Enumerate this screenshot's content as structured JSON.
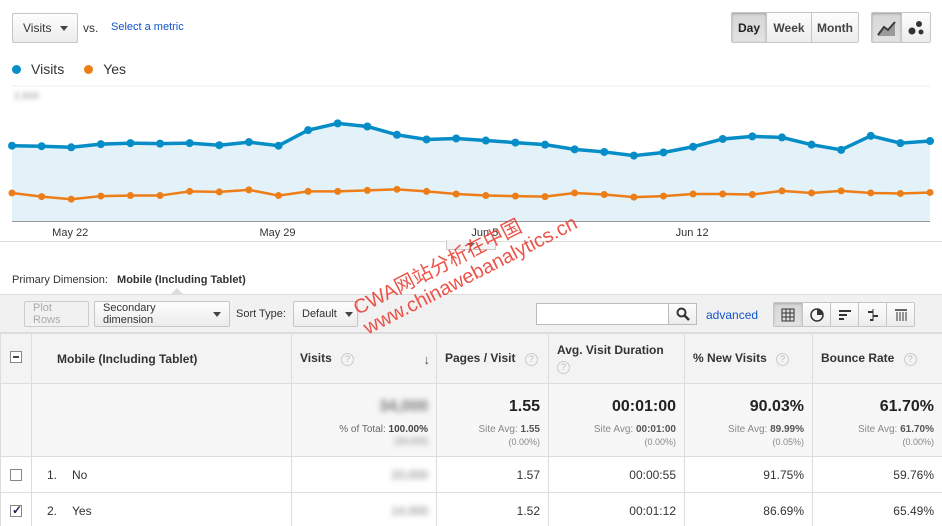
{
  "controls": {
    "metric_select": "Visits",
    "vs_label": "vs.",
    "select_metric": "Select a metric",
    "periods": [
      {
        "label": "Day",
        "active": true
      },
      {
        "label": "Week",
        "active": false
      },
      {
        "label": "Month",
        "active": false
      }
    ],
    "chart_types": [
      {
        "icon": "line-chart-icon",
        "active": true
      },
      {
        "icon": "motion-chart-icon",
        "active": false
      }
    ]
  },
  "legend": [
    {
      "label": "Visits",
      "color": "#058dc7"
    },
    {
      "label": "Yes",
      "color": "#ed7e17"
    }
  ],
  "chart_data": {
    "type": "line",
    "title": "",
    "xlabel": "",
    "ylabel": "",
    "x_tick_labels": [
      "May 22",
      "May 29",
      "Jun 5",
      "Jun 12"
    ],
    "y_tick_labels_blurred": true,
    "series": [
      {
        "name": "Visits",
        "color": "#058dc7",
        "area": true,
        "values": [
          1450,
          1440,
          1420,
          1480,
          1500,
          1490,
          1500,
          1460,
          1520,
          1450,
          1750,
          1880,
          1820,
          1660,
          1570,
          1590,
          1550,
          1510,
          1470,
          1380,
          1330,
          1260,
          1320,
          1430,
          1580,
          1630,
          1610,
          1470,
          1370,
          1640,
          1500,
          1540
        ]
      },
      {
        "name": "Yes",
        "color": "#ed7e17",
        "area": false,
        "values": [
          540,
          470,
          420,
          480,
          490,
          490,
          570,
          560,
          600,
          490,
          570,
          570,
          590,
          610,
          570,
          520,
          490,
          480,
          470,
          540,
          510,
          460,
          480,
          520,
          520,
          510,
          580,
          540,
          580,
          540,
          530,
          550
        ]
      }
    ],
    "ylim": [
      0,
      2600
    ]
  },
  "primary_dimension": {
    "label": "Primary Dimension:",
    "value": "Mobile (Including Tablet)"
  },
  "toolbar": {
    "plot_rows": "Plot Rows",
    "secondary_dimension": "Secondary dimension",
    "sort_type_label": "Sort Type:",
    "sort_type_value": "Default",
    "search_placeholder": "",
    "advanced": "advanced"
  },
  "table": {
    "headers": {
      "dimension": "Mobile (Including Tablet)",
      "visits": "Visits",
      "pages_visit": "Pages / Visit",
      "avg_duration": "Avg. Visit Duration",
      "new_visits": "% New Visits",
      "bounce_rate": "Bounce Rate"
    },
    "totals": {
      "visits": "34,000",
      "visits_pct_label": "% of Total:",
      "visits_pct_value": "100.00%",
      "visits_sub": "(34,000)",
      "pages_visit": "1.55",
      "pages_visit_site_label": "Site Avg:",
      "pages_visit_site_value": "1.55",
      "pages_visit_diff": "(0.00%)",
      "avg_duration": "00:01:00",
      "avg_duration_site_label": "Site Avg:",
      "avg_duration_site_value": "00:01:00",
      "avg_duration_diff": "(0.00%)",
      "new_visits": "90.03%",
      "new_visits_site_label": "Site Avg:",
      "new_visits_site_value": "89.99%",
      "new_visits_diff": "(0.05%)",
      "bounce_rate": "61.70%",
      "bounce_rate_site_label": "Site Avg:",
      "bounce_rate_site_value": "61.70%",
      "bounce_rate_diff": "(0.00%)"
    },
    "rows": [
      {
        "num": "1.",
        "name": "No",
        "checked": false,
        "visits": "20,000",
        "pages_visit": "1.57",
        "avg_duration": "00:00:55",
        "new_visits": "91.75%",
        "bounce_rate": "59.76%"
      },
      {
        "num": "2.",
        "name": "Yes",
        "checked": true,
        "visits": "14,000",
        "pages_visit": "1.52",
        "avg_duration": "00:01:12",
        "new_visits": "86.69%",
        "bounce_rate": "65.49%"
      }
    ]
  },
  "watermark": {
    "line1": "CWA网站分析在中国",
    "line2": "www.chinawebanalytics.cn"
  }
}
